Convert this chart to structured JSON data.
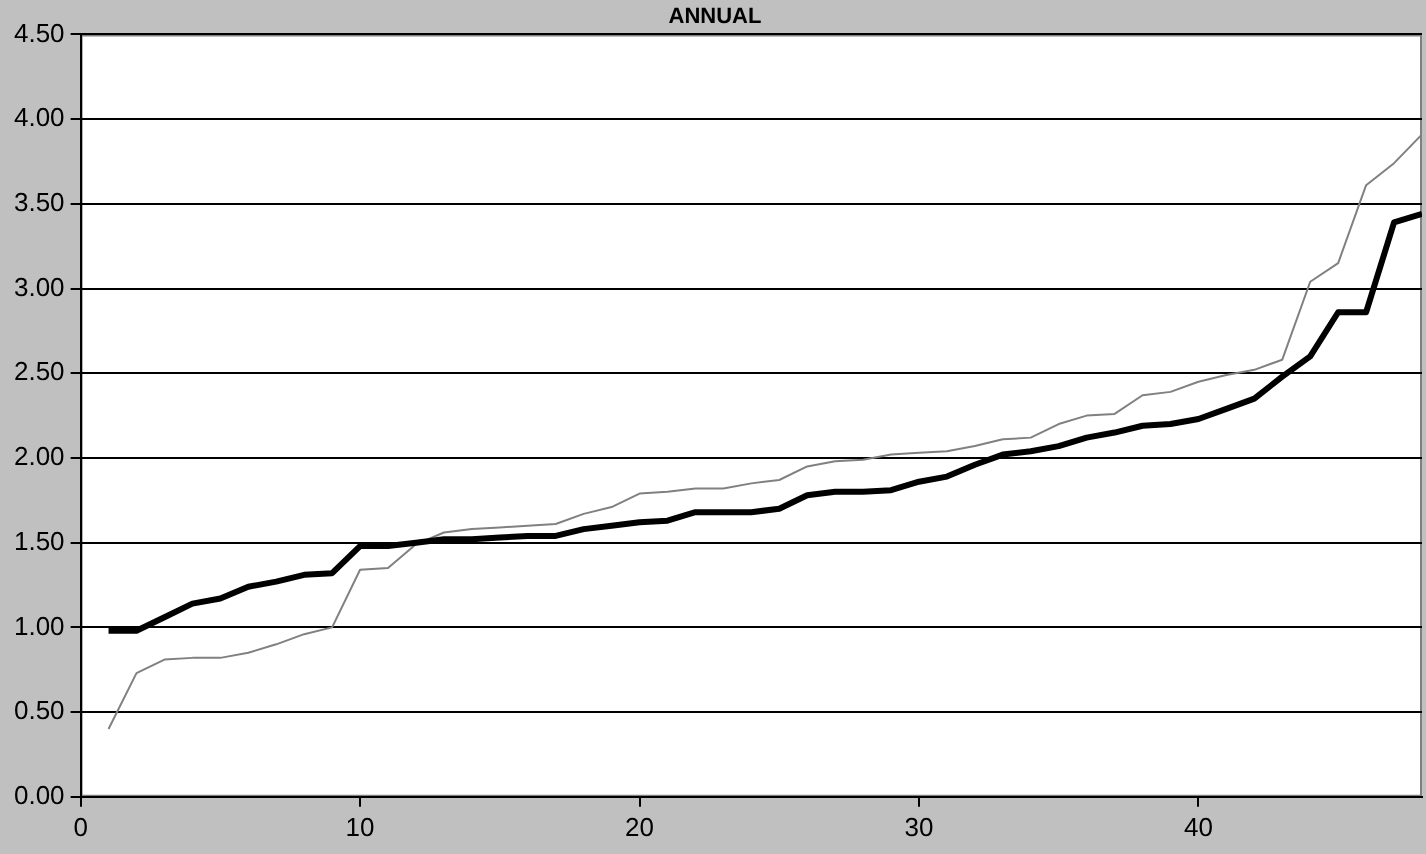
{
  "chart_data": {
    "type": "line",
    "title": "ANNUAL",
    "x": [
      1,
      2,
      3,
      4,
      5,
      6,
      7,
      8,
      9,
      10,
      11,
      12,
      13,
      14,
      15,
      16,
      17,
      18,
      19,
      20,
      21,
      22,
      23,
      24,
      25,
      26,
      27,
      28,
      29,
      30,
      31,
      32,
      33,
      34,
      35,
      36,
      37,
      38,
      39,
      40,
      41,
      42,
      43,
      44,
      45,
      46,
      47,
      48
    ],
    "series": [
      {
        "color": "#000000",
        "values": [
          0.98,
          0.98,
          1.06,
          1.14,
          1.17,
          1.24,
          1.27,
          1.31,
          1.32,
          1.48,
          1.48,
          1.5,
          1.52,
          1.52,
          1.53,
          1.54,
          1.54,
          1.58,
          1.6,
          1.62,
          1.63,
          1.68,
          1.68,
          1.68,
          1.7,
          1.78,
          1.8,
          1.8,
          1.81,
          1.86,
          1.89,
          1.96,
          2.02,
          2.04,
          2.07,
          2.12,
          2.15,
          2.19,
          2.2,
          2.23,
          2.29,
          2.35,
          2.48,
          2.6,
          2.86,
          2.86,
          3.39,
          3.44
        ]
      },
      {
        "color": "#808080",
        "values": [
          0.4,
          0.73,
          0.81,
          0.82,
          0.82,
          0.85,
          0.9,
          0.96,
          1.0,
          1.34,
          1.35,
          1.49,
          1.56,
          1.58,
          1.59,
          1.6,
          1.61,
          1.67,
          1.71,
          1.79,
          1.8,
          1.82,
          1.82,
          1.85,
          1.87,
          1.95,
          1.98,
          1.99,
          2.02,
          2.03,
          2.04,
          2.07,
          2.11,
          2.12,
          2.2,
          2.25,
          2.26,
          2.37,
          2.39,
          2.45,
          2.49,
          2.52,
          2.58,
          3.04,
          3.15,
          3.61,
          3.74,
          3.91
        ]
      }
    ],
    "xlim": [
      0,
      48
    ],
    "xticks": [
      0,
      10,
      20,
      30,
      40
    ],
    "ylim": [
      0,
      4.5
    ],
    "yticks": [
      {
        "value": 0,
        "label": "0.00"
      },
      {
        "value": 0.5,
        "label": "0.50"
      },
      {
        "value": 1,
        "label": "1.00"
      },
      {
        "value": 1.5,
        "label": "1.50"
      },
      {
        "value": 2,
        "label": "2.00"
      },
      {
        "value": 2.5,
        "label": "2.50"
      },
      {
        "value": 3,
        "label": "3.00"
      },
      {
        "value": 3.5,
        "label": "3.50"
      },
      {
        "value": 4,
        "label": "4.00"
      },
      {
        "value": 4.5,
        "label": "4.50"
      }
    ],
    "grid": "y",
    "legend": false,
    "marker": "none",
    "line_style": "solid"
  }
}
